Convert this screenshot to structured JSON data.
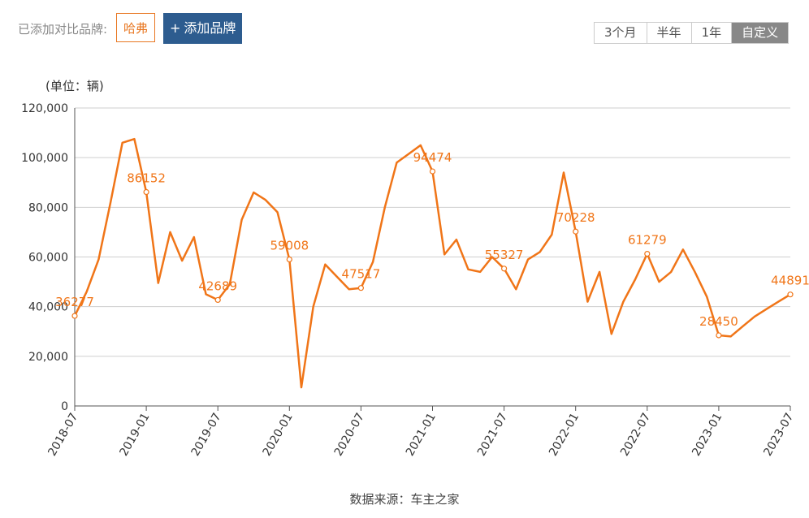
{
  "toolbar": {
    "added_label": "已添加对比品牌:",
    "brand": "哈弗",
    "add_button": "添加品牌",
    "range_options": [
      "3个月",
      "半年",
      "1年",
      "自定义"
    ],
    "active_range": "自定义"
  },
  "unit_label": "(单位：辆)",
  "source": "数据来源：车主之家",
  "chart_data": {
    "type": "line",
    "ylim": [
      0,
      120000
    ],
    "yticks": [
      0,
      20000,
      40000,
      60000,
      80000,
      100000,
      120000
    ],
    "ytick_labels": [
      "0",
      "20,000",
      "40,000",
      "60,000",
      "80,000",
      "100,000",
      "120,000"
    ],
    "xtick_labels": [
      "2018-07",
      "2019-01",
      "2019-07",
      "2020-01",
      "2020-07",
      "2021-01",
      "2021-07",
      "2022-01",
      "2022-07",
      "2023-01",
      "2023-07"
    ],
    "line_color": "#f07518",
    "grid": true,
    "x": [
      "2018-07",
      "2018-08",
      "2018-09",
      "2018-10",
      "2018-11",
      "2018-12",
      "2019-01",
      "2019-02",
      "2019-03",
      "2019-04",
      "2019-05",
      "2019-06",
      "2019-07",
      "2019-08",
      "2019-09",
      "2019-10",
      "2019-11",
      "2019-12",
      "2020-01",
      "2020-02",
      "2020-03",
      "2020-04",
      "2020-05",
      "2020-06",
      "2020-07",
      "2020-08",
      "2020-09",
      "2020-10",
      "2020-11",
      "2020-12",
      "2021-01",
      "2021-02",
      "2021-03",
      "2021-04",
      "2021-05",
      "2021-06",
      "2021-07",
      "2021-08",
      "2021-09",
      "2021-10",
      "2021-11",
      "2021-12",
      "2022-01",
      "2022-02",
      "2022-03",
      "2022-04",
      "2022-05",
      "2022-06",
      "2022-07",
      "2022-08",
      "2022-09",
      "2022-10",
      "2022-11",
      "2022-12",
      "2023-01",
      "2023-02",
      "2023-03",
      "2023-04",
      "2023-05",
      "2023-06",
      "2023-07"
    ],
    "values": [
      36277,
      46000,
      59000,
      82000,
      106000,
      107500,
      86152,
      49500,
      70000,
      58500,
      68000,
      45000,
      42689,
      49000,
      75000,
      86000,
      83000,
      78000,
      59008,
      7500,
      40000,
      57000,
      52000,
      47000,
      47517,
      58000,
      80000,
      98000,
      101500,
      105000,
      94474,
      61000,
      67000,
      55000,
      54000,
      60000,
      55327,
      47000,
      59000,
      62000,
      69000,
      94000,
      70228,
      42000,
      54000,
      29000,
      42000,
      51000,
      61279,
      50000,
      54000,
      63000,
      54000,
      44000,
      28450,
      28000,
      32000,
      36000,
      39000,
      42000,
      44891
    ],
    "labeled_points": [
      {
        "x": "2018-07",
        "value": 36277,
        "label": "36277"
      },
      {
        "x": "2019-01",
        "value": 86152,
        "label": "86152"
      },
      {
        "x": "2019-07",
        "value": 42689,
        "label": "42689"
      },
      {
        "x": "2020-01",
        "value": 59008,
        "label": "59008"
      },
      {
        "x": "2020-07",
        "value": 47517,
        "label": "47517"
      },
      {
        "x": "2021-01",
        "value": 94474,
        "label": "94474"
      },
      {
        "x": "2021-07",
        "value": 55327,
        "label": "55327"
      },
      {
        "x": "2022-01",
        "value": 70228,
        "label": "70228"
      },
      {
        "x": "2022-07",
        "value": 61279,
        "label": "61279"
      },
      {
        "x": "2023-01",
        "value": 28450,
        "label": "28450"
      },
      {
        "x": "2023-07",
        "value": 44891,
        "label": "44891"
      }
    ]
  }
}
